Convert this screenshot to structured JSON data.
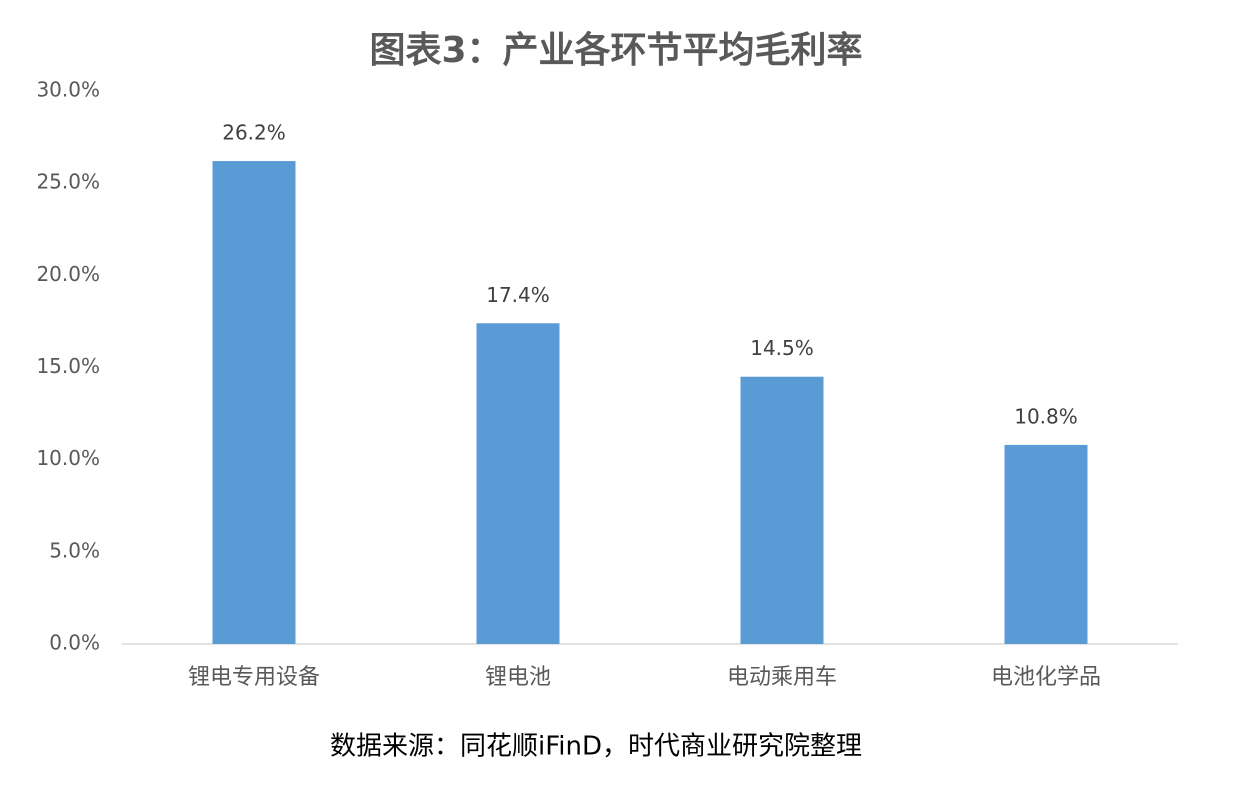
{
  "chart_data": {
    "type": "bar",
    "title": "图表3：产业各环节平均毛利率",
    "categories": [
      "锂电专用设备",
      "锂电池",
      "电动乘用车",
      "电池化学品"
    ],
    "values": [
      26.2,
      17.4,
      14.5,
      10.8
    ],
    "value_labels": [
      "26.2%",
      "17.4%",
      "14.5%",
      "10.8%"
    ],
    "color": "#5b9bd5",
    "ylim": [
      0,
      30
    ],
    "yticks": [
      {
        "value": 0,
        "label": "0.0%"
      },
      {
        "value": 5,
        "label": "5.0%"
      },
      {
        "value": 10,
        "label": "10.0%"
      },
      {
        "value": 15,
        "label": "15.0%"
      },
      {
        "value": 20,
        "label": "20.0%"
      },
      {
        "value": 25,
        "label": "25.0%"
      },
      {
        "value": 30,
        "label": "30.0%"
      }
    ],
    "grid": false,
    "source": "数据来源：同花顺iFinD，时代商业研究院整理"
  }
}
